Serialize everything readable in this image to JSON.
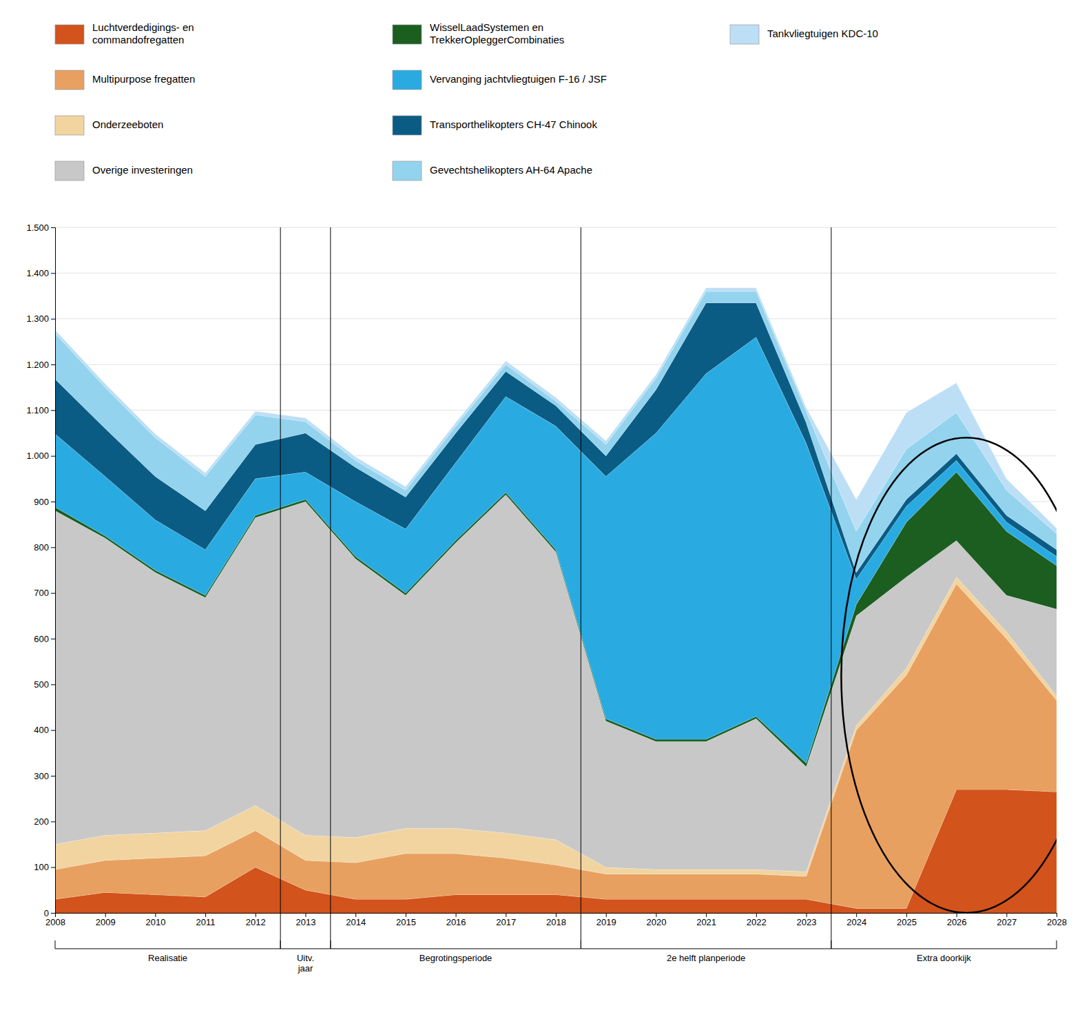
{
  "chart_data": {
    "type": "area",
    "stacked": true,
    "grid": true,
    "legend": "top",
    "x": [
      2008,
      2009,
      2010,
      2011,
      2012,
      2013,
      2014,
      2015,
      2016,
      2017,
      2018,
      2019,
      2020,
      2021,
      2022,
      2023,
      2024,
      2025,
      2026,
      2027,
      2028
    ],
    "xlim": [
      2008,
      2028
    ],
    "xticks": [
      2008,
      2009,
      2010,
      2011,
      2012,
      2013,
      2014,
      2015,
      2016,
      2017,
      2018,
      2019,
      2020,
      2021,
      2022,
      2023,
      2024,
      2025,
      2026,
      2027,
      2028
    ],
    "ylim": [
      0,
      1500
    ],
    "yticks": [
      0,
      100,
      200,
      300,
      400,
      500,
      600,
      700,
      800,
      900,
      {
        "value": 1000,
        "label": "1.000"
      },
      {
        "value": 1100,
        "label": "1.100"
      },
      {
        "value": 1200,
        "label": "1.200"
      },
      {
        "value": 1300,
        "label": "1.300"
      },
      {
        "value": 1400,
        "label": "1.400"
      },
      {
        "value": 1500,
        "label": "1.500"
      }
    ],
    "series": [
      {
        "name": "Luchtverdedigings- en\ncommandofregatten",
        "color": "#D2531C",
        "values": [
          30,
          45,
          40,
          35,
          100,
          50,
          30,
          30,
          40,
          40,
          40,
          30,
          30,
          30,
          30,
          30,
          10,
          10,
          270,
          270,
          265
        ]
      },
      {
        "name": "Multipurpose fregatten",
        "color": "#E8A060",
        "values": [
          65,
          70,
          80,
          90,
          80,
          65,
          80,
          100,
          90,
          80,
          65,
          55,
          55,
          55,
          55,
          50,
          390,
          510,
          450,
          330,
          200
        ]
      },
      {
        "name": "Onderzeeboten",
        "color": "#F2D4A0",
        "values": [
          55,
          55,
          55,
          55,
          55,
          55,
          55,
          55,
          55,
          55,
          55,
          15,
          10,
          10,
          10,
          10,
          10,
          15,
          15,
          15,
          10
        ]
      },
      {
        "name": "Overige investeringen",
        "color": "#C8C8C8",
        "values": [
          730,
          650,
          570,
          510,
          630,
          730,
          610,
          510,
          625,
          740,
          630,
          320,
          280,
          280,
          330,
          230,
          240,
          200,
          80,
          80,
          190
        ]
      },
      {
        "name": "WisselLaadSystemen en\nTrekkerOpleggerCombinaties",
        "color": "#1B5E20",
        "values": [
          8,
          5,
          5,
          5,
          5,
          5,
          5,
          5,
          5,
          5,
          5,
          5,
          5,
          5,
          5,
          8,
          25,
          120,
          150,
          140,
          95
        ]
      },
      {
        "name": "Vervanging jachtvliegtuigen F-16 / JSF",
        "color": "#29ABE2",
        "values": [
          160,
          130,
          110,
          100,
          80,
          60,
          120,
          140,
          170,
          210,
          270,
          530,
          670,
          800,
          830,
          700,
          55,
          35,
          25,
          20,
          20
        ]
      },
      {
        "name": "Transporthelikopters CH-47 Chinook",
        "color": "#0A5C84",
        "values": [
          120,
          105,
          95,
          85,
          75,
          85,
          75,
          70,
          65,
          55,
          45,
          45,
          95,
          155,
          75,
          45,
          15,
          15,
          15,
          15,
          15
        ]
      },
      {
        "name": "Gevechtshelikopters AH-64 Apache",
        "color": "#93D3EE",
        "values": [
          100,
          90,
          85,
          75,
          65,
          25,
          15,
          15,
          15,
          15,
          10,
          25,
          25,
          25,
          25,
          25,
          90,
          110,
          90,
          55,
          35
        ]
      },
      {
        "name": "Tankvliegtuigen KDC-10",
        "color": "#BDDFF5",
        "values": [
          8,
          8,
          8,
          8,
          8,
          8,
          8,
          8,
          8,
          8,
          8,
          8,
          8,
          8,
          8,
          8,
          70,
          80,
          65,
          25,
          12
        ]
      }
    ],
    "annotations": [
      {
        "text": "Realisatie",
        "x": [
          2008,
          2012.5
        ]
      },
      {
        "text": "Uitv.\njaar",
        "x": [
          2012.5,
          2013.5
        ]
      },
      {
        "text": "Begrotingsperiode",
        "x": [
          2013.5,
          2018.5
        ]
      },
      {
        "text": "2e helft planperiode",
        "x": [
          2018.5,
          2023.5
        ]
      },
      {
        "text": "Extra doorkijk",
        "x": [
          2023.5,
          2028
        ]
      }
    ],
    "period_lines": [
      2012.5,
      2013.5,
      2018.5,
      2023.5
    ],
    "ellipse": {
      "x": 2026.2,
      "y": 520,
      "width": 5.0,
      "height": 1040
    }
  }
}
